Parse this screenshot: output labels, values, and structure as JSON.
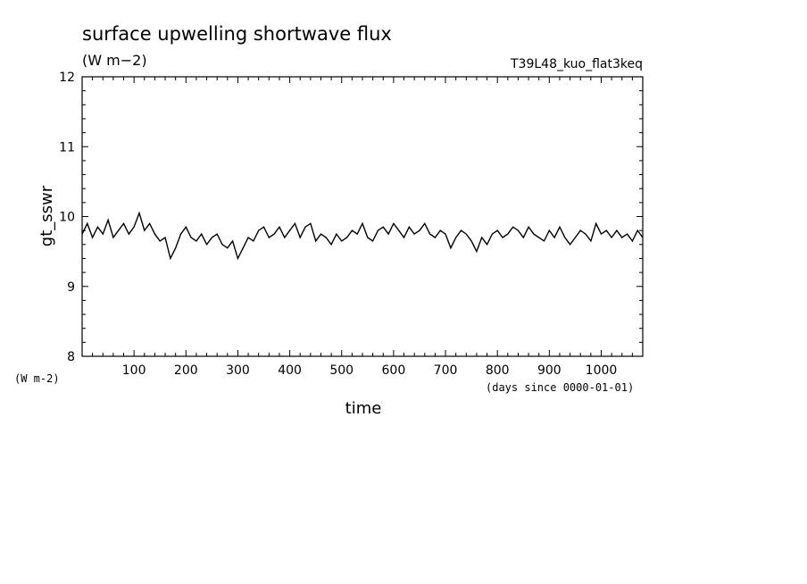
{
  "chart_data": {
    "type": "line",
    "title": "surface upwelling shortwave flux",
    "units_label": "(W m−2)",
    "run_label": "T39L48_kuo_flat3keq",
    "ylabel": "gt_sswr",
    "y_units": "(W m-2)",
    "xlabel": "time",
    "x_units": "(days since 0000-01-01)",
    "xlim": [
      0,
      1080
    ],
    "ylim": [
      8,
      12
    ],
    "x_ticks": [
      100,
      200,
      300,
      400,
      500,
      600,
      700,
      800,
      900,
      1000
    ],
    "y_ticks": [
      8,
      9,
      10,
      11,
      12
    ],
    "grid": false,
    "series": [
      {
        "x": [
          0,
          10,
          20,
          30,
          40,
          50,
          60,
          70,
          80,
          90,
          100,
          110,
          120,
          130,
          140,
          150,
          160,
          170,
          180,
          190,
          200,
          210,
          220,
          230,
          240,
          250,
          260,
          270,
          280,
          290,
          300,
          310,
          320,
          330,
          340,
          350,
          360,
          370,
          380,
          390,
          400,
          410,
          420,
          430,
          440,
          450,
          460,
          470,
          480,
          490,
          500,
          510,
          520,
          530,
          540,
          550,
          560,
          570,
          580,
          590,
          600,
          610,
          620,
          630,
          640,
          650,
          660,
          670,
          680,
          690,
          700,
          710,
          720,
          730,
          740,
          750,
          760,
          770,
          780,
          790,
          800,
          810,
          820,
          830,
          840,
          850,
          860,
          870,
          880,
          890,
          900,
          910,
          920,
          930,
          940,
          950,
          960,
          970,
          980,
          990,
          1000,
          1010,
          1020,
          1030,
          1040,
          1050,
          1060,
          1070,
          1080
        ],
        "values": [
          9.75,
          9.9,
          9.7,
          9.85,
          9.75,
          9.95,
          9.7,
          9.8,
          9.9,
          9.75,
          9.85,
          10.05,
          9.8,
          9.9,
          9.75,
          9.65,
          9.7,
          9.4,
          9.55,
          9.75,
          9.85,
          9.7,
          9.65,
          9.75,
          9.6,
          9.7,
          9.75,
          9.6,
          9.55,
          9.65,
          9.4,
          9.55,
          9.7,
          9.65,
          9.8,
          9.85,
          9.7,
          9.75,
          9.85,
          9.7,
          9.8,
          9.9,
          9.7,
          9.85,
          9.9,
          9.65,
          9.75,
          9.7,
          9.6,
          9.75,
          9.65,
          9.7,
          9.8,
          9.75,
          9.9,
          9.7,
          9.65,
          9.8,
          9.85,
          9.75,
          9.9,
          9.8,
          9.7,
          9.85,
          9.75,
          9.8,
          9.9,
          9.75,
          9.7,
          9.8,
          9.75,
          9.55,
          9.7,
          9.8,
          9.75,
          9.65,
          9.5,
          9.7,
          9.6,
          9.75,
          9.8,
          9.7,
          9.75,
          9.85,
          9.8,
          9.7,
          9.85,
          9.75,
          9.7,
          9.65,
          9.8,
          9.7,
          9.85,
          9.7,
          9.6,
          9.7,
          9.8,
          9.75,
          9.65,
          9.9,
          9.75,
          9.8,
          9.7,
          9.8,
          9.7,
          9.75,
          9.65,
          9.8,
          9.7
        ]
      }
    ]
  }
}
